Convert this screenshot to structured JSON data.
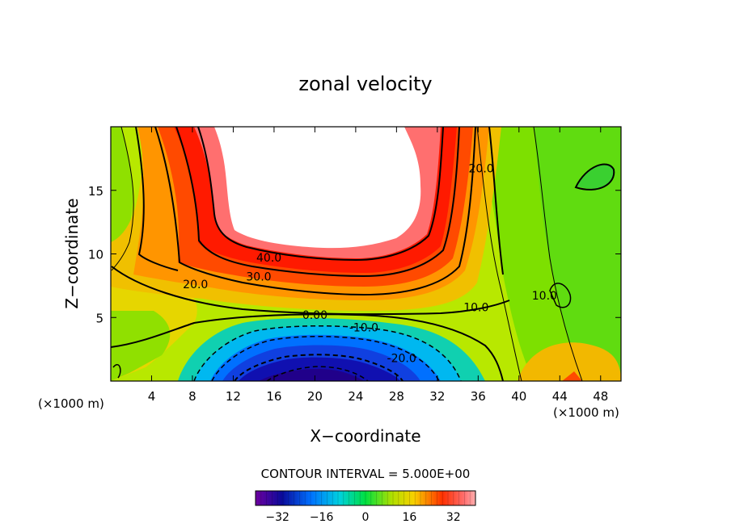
{
  "chart_data": {
    "type": "heatmap",
    "title": "zonal velocity",
    "xlabel": "X−coordinate",
    "ylabel": "Z−coordinate",
    "x_unit_left": "(×1000 m)",
    "x_unit_right": "(×1000 m)",
    "xlim": [
      0,
      50
    ],
    "ylim": [
      0,
      20
    ],
    "x_ticks": [
      4,
      8,
      12,
      16,
      20,
      24,
      28,
      32,
      36,
      40,
      44,
      48
    ],
    "y_ticks": [
      5,
      10,
      15
    ],
    "contour_interval_text": "CONTOUR INTERVAL = 5.000E+00",
    "contour_labels": [
      {
        "text": "40.0",
        "x": 15.5,
        "y": 9.4
      },
      {
        "text": "30.0",
        "x": 14.5,
        "y": 7.9
      },
      {
        "text": "20.0",
        "x": 8.3,
        "y": 7.3
      },
      {
        "text": "20.0",
        "x": 36.3,
        "y": 16.4
      },
      {
        "text": "10.0",
        "x": 35.8,
        "y": 5.5
      },
      {
        "text": "10.0",
        "x": 42.5,
        "y": 6.4
      },
      {
        "text": "0.00",
        "x": 20.0,
        "y": 4.9
      },
      {
        "text": "-10.0",
        "x": 24.8,
        "y": 3.9
      },
      {
        "text": "-20.0",
        "x": 28.5,
        "y": 1.5
      }
    ],
    "colorbar": {
      "range": [
        -40,
        40
      ],
      "ticks": [
        -32,
        -16,
        0,
        16,
        32
      ],
      "tick_labels": [
        "−32",
        "−16",
        "0",
        "16",
        "32"
      ]
    },
    "colors": {
      "deep_negative": "#23007a",
      "negative": "#0080ff",
      "zero": "#00e0a0",
      "low_positive": "#88e000",
      "mid_positive": "#f0d000",
      "high_positive": "#ff3000",
      "peak_positive": "#ffffff"
    }
  }
}
